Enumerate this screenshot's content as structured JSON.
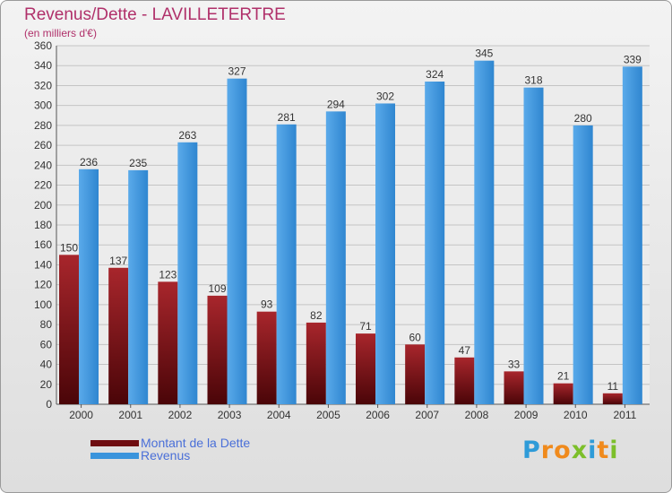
{
  "title": "Revenus/Dette - LAVILLETERTRE",
  "subtitle": "(en milliers d'€)",
  "brand": {
    "letters": [
      "P",
      "r",
      "o",
      "x",
      "i",
      "t",
      "i"
    ],
    "colors": [
      "#2e9bd8",
      "#f08a1c",
      "#f08a1c",
      "#7cbf2a",
      "#2e9bd8",
      "#f08a1c",
      "#7cbf2a"
    ]
  },
  "legend": [
    {
      "label": "Montant de la Dette",
      "color": "#6e0c10"
    },
    {
      "label": "Revenus",
      "color": "#3a94dc"
    }
  ],
  "chart_data": {
    "type": "bar",
    "title": "Revenus/Dette - LAVILLETERTRE",
    "ylabel": "(en milliers d'€)",
    "xlabel": "",
    "ylim": [
      0,
      360
    ],
    "yticks": [
      0,
      20,
      40,
      60,
      80,
      100,
      120,
      140,
      160,
      180,
      200,
      220,
      240,
      260,
      280,
      300,
      320,
      340,
      360
    ],
    "grid": true,
    "legend_position": "bottom-left",
    "categories": [
      "2000",
      "2001",
      "2002",
      "2003",
      "2004",
      "2005",
      "2006",
      "2007",
      "2008",
      "2009",
      "2010",
      "2011"
    ],
    "series": [
      {
        "name": "Montant de la Dette",
        "color": "#6e0c10",
        "values": [
          150,
          137,
          123,
          109,
          93,
          82,
          71,
          60,
          47,
          33,
          21,
          11
        ]
      },
      {
        "name": "Revenus",
        "color": "#3a94dc",
        "values": [
          236,
          235,
          263,
          327,
          281,
          294,
          302,
          324,
          345,
          318,
          280,
          339
        ]
      }
    ]
  }
}
